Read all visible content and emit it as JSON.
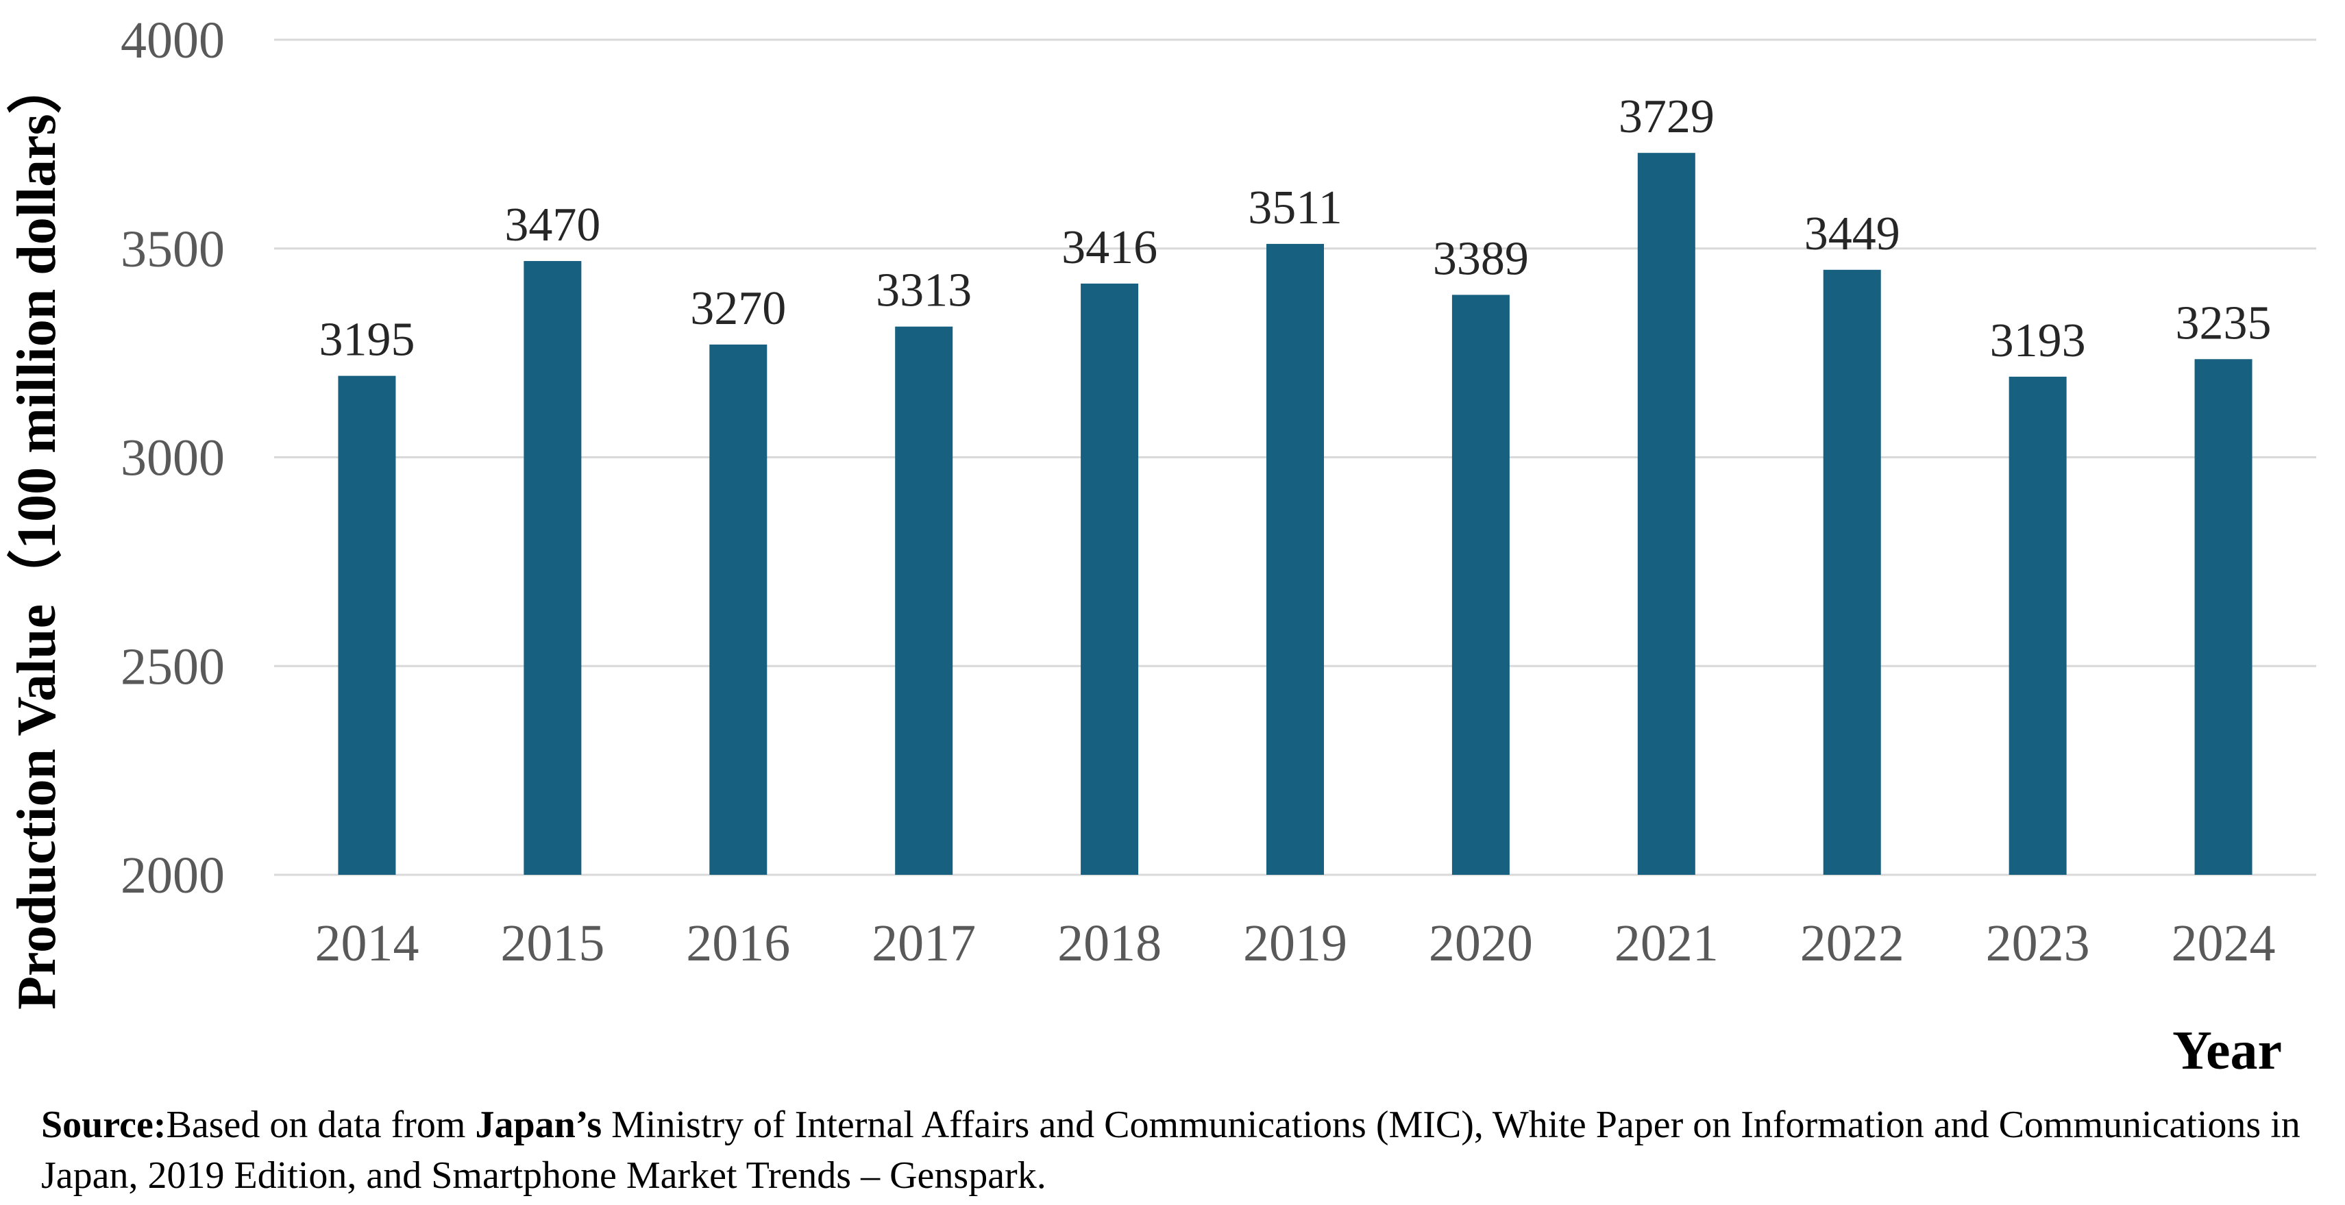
{
  "chart_data": {
    "type": "bar",
    "categories": [
      "2014",
      "2015",
      "2016",
      "2017",
      "2018",
      "2019",
      "2020",
      "2021",
      "2022",
      "2023",
      "2024"
    ],
    "values": [
      3195,
      3470,
      3270,
      3313,
      3416,
      3511,
      3389,
      3729,
      3449,
      3193,
      3235
    ],
    "data_labels": [
      "3195",
      "3470",
      "3270",
      "3313",
      "3416",
      "3511",
      "3389",
      "3729",
      "3449",
      "3193",
      "3235"
    ],
    "y_ticks": [
      "2000",
      "2500",
      "3000",
      "3500",
      "4000"
    ],
    "ylim": [
      2000,
      4000
    ],
    "ylabel": "Production Value（100 million dollars）",
    "xlabel": "Year",
    "grid": true,
    "legend": "none",
    "bar_color": "#17607F",
    "grid_color": "#D9D9D9"
  },
  "source": {
    "label": "Source:",
    "text_1": "Based on data from ",
    "emphasis": "Japan’s",
    "text_2": "  Ministry of Internal Affairs and Communications (MIC), White Paper on Information and Communications in Japan, 2019 Edition, and  Smartphone Market Trends  – Genspark."
  }
}
